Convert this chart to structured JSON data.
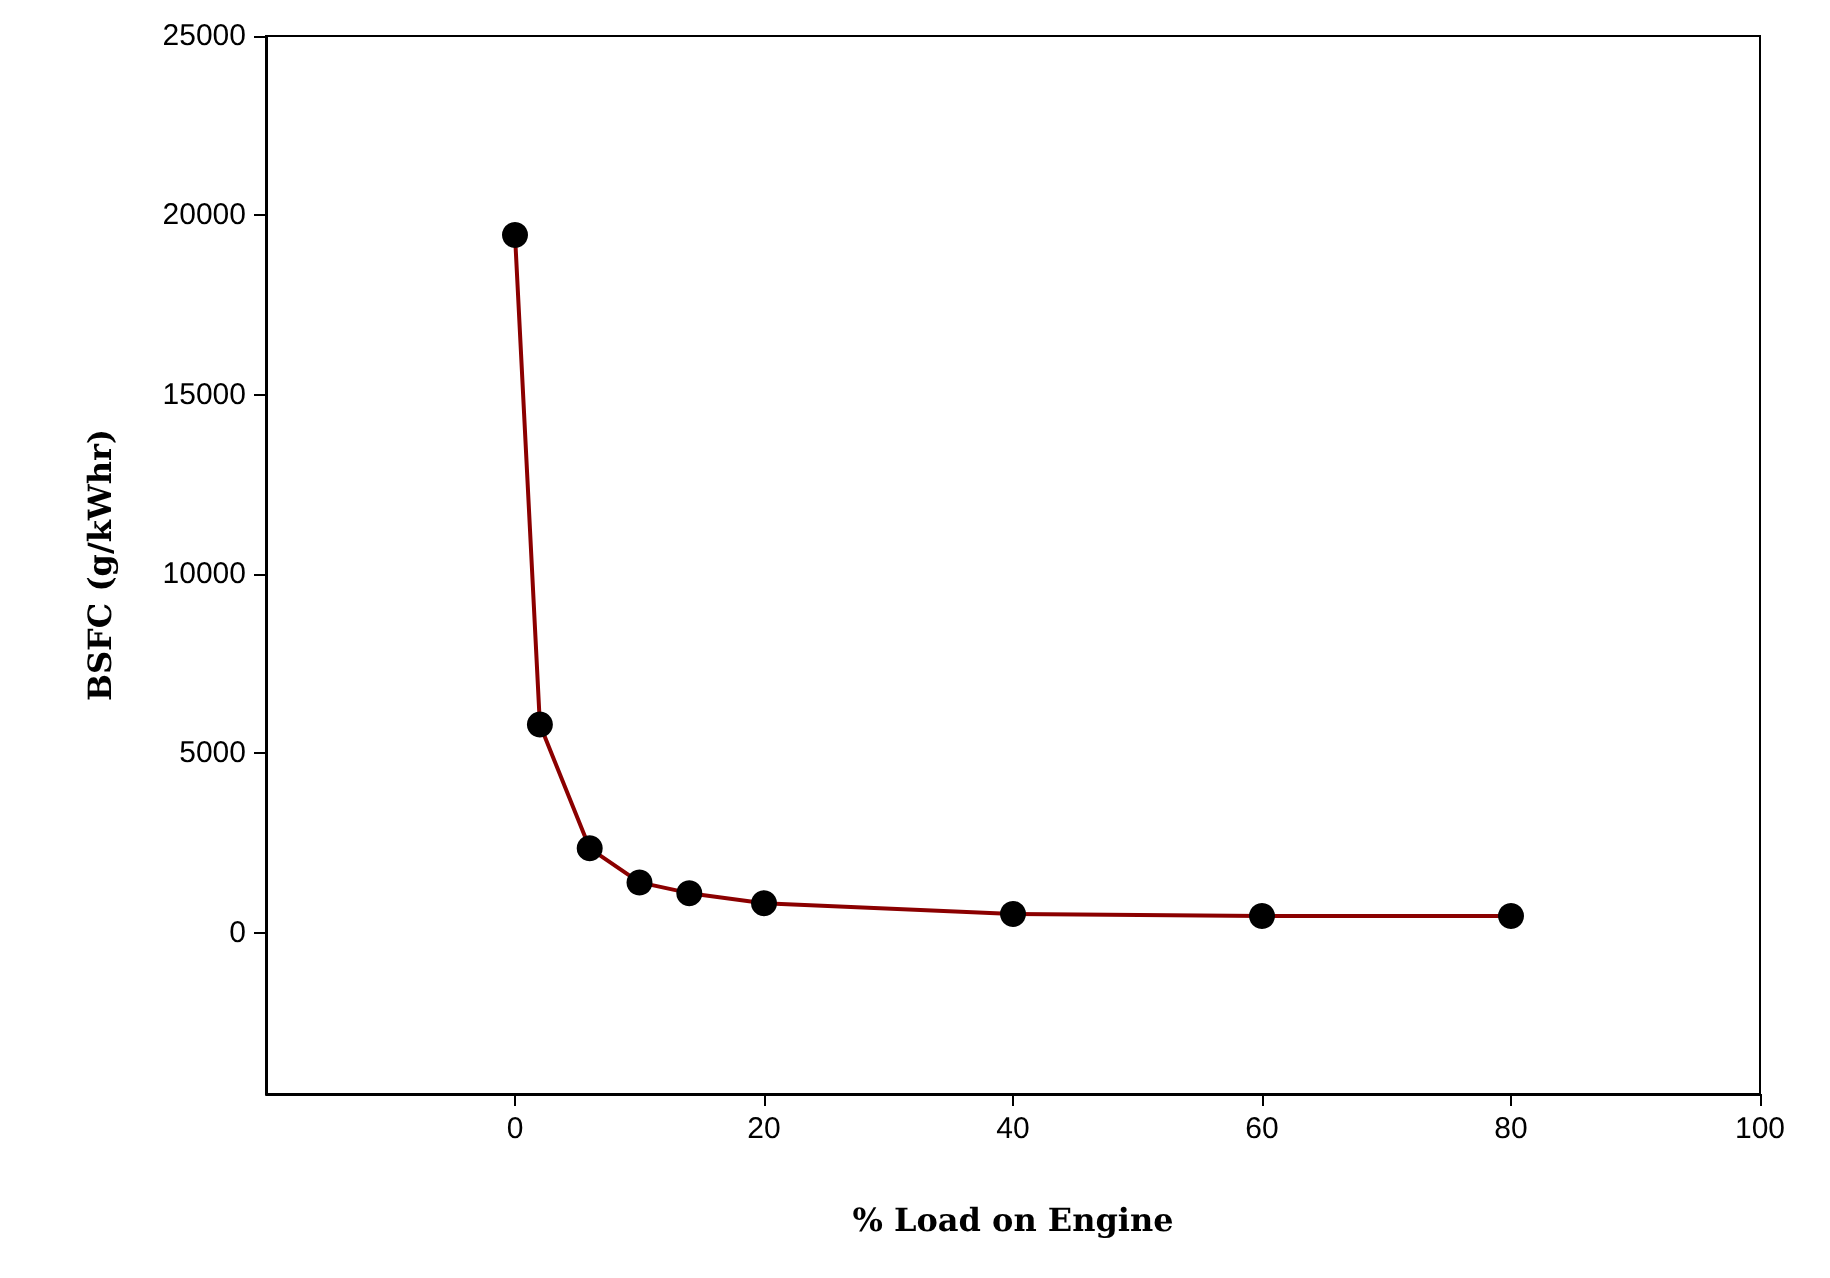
{
  "chart_data": {
    "type": "line",
    "xlabel": "% Load on Engine",
    "ylabel": "BSFC (g/kWhr)",
    "x": [
      0,
      2,
      6,
      10,
      14,
      20,
      40,
      60,
      80
    ],
    "series": [
      {
        "color": "#8b0000",
        "values": [
          19450,
          5800,
          2350,
          1400,
          1100,
          820,
          520,
          460,
          460
        ]
      }
    ],
    "xlim": [
      -20,
      100
    ],
    "xticks": [
      0,
      20,
      40,
      60,
      80,
      100
    ],
    "ylim": [
      -4500,
      25000
    ],
    "yticks": [
      0,
      5000,
      10000,
      15000,
      20000,
      25000
    ],
    "marker": "circle",
    "line_style": "solid"
  }
}
